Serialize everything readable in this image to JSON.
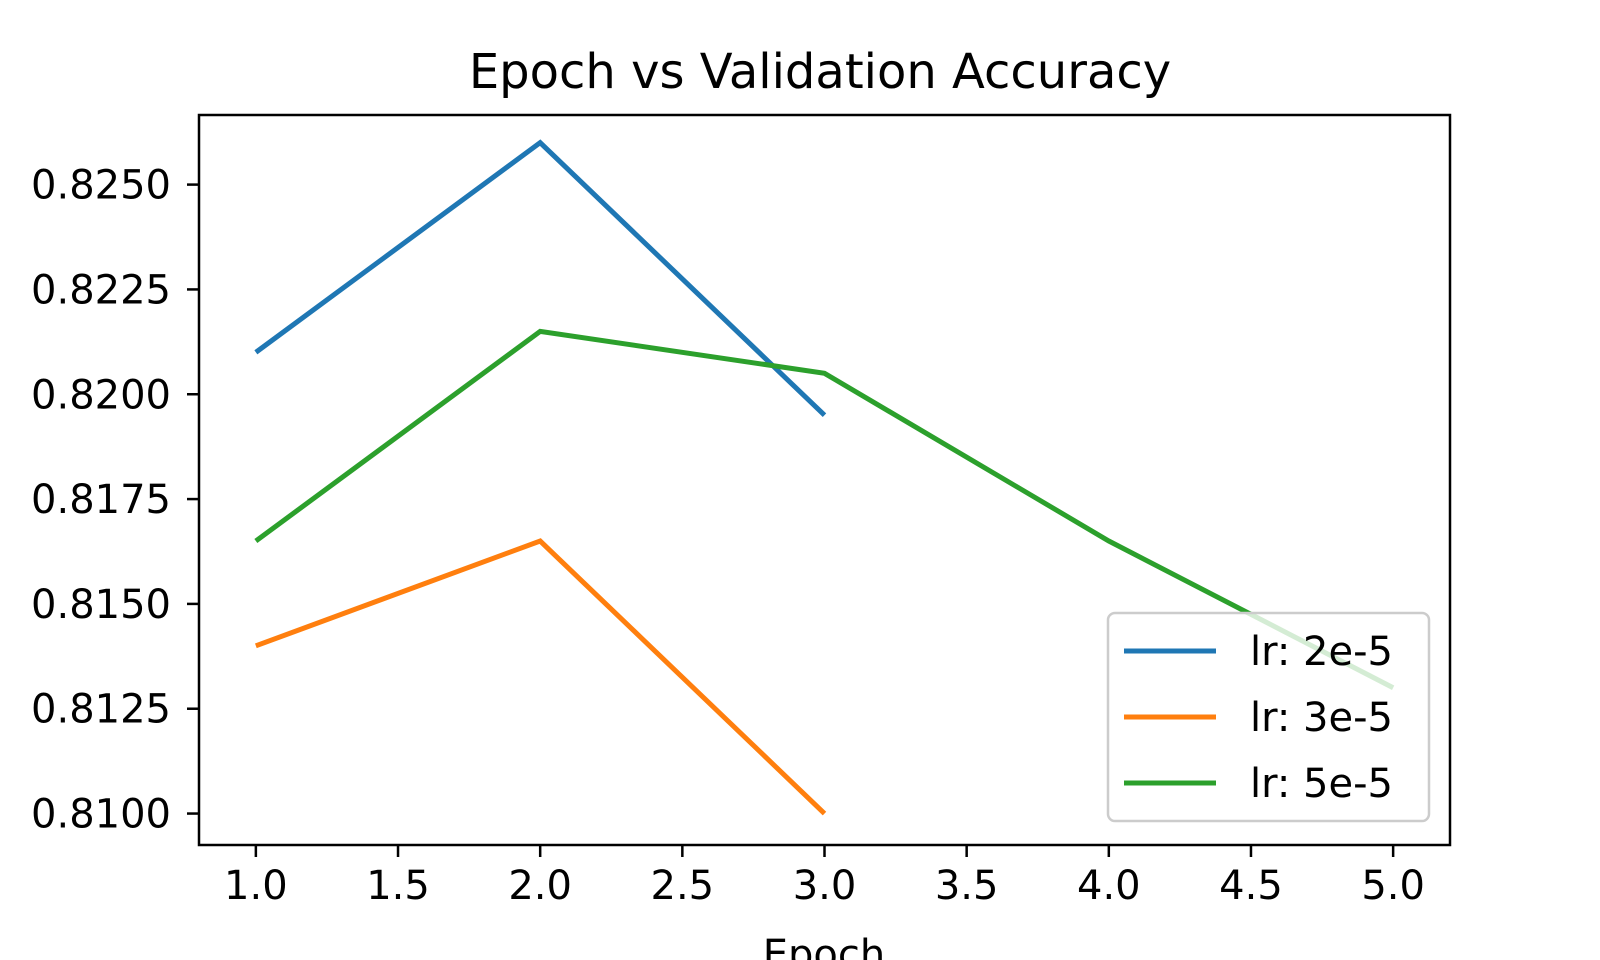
{
  "chart_data": {
    "type": "line",
    "title": "Epoch vs Validation Accuracy",
    "xlabel": "Epoch",
    "ylabel": "",
    "xlim": [
      0.8,
      5.2
    ],
    "ylim": [
      0.80925,
      0.82666
    ],
    "xticks": [
      1.0,
      1.5,
      2.0,
      2.5,
      3.0,
      3.5,
      4.0,
      4.5,
      5.0
    ],
    "xtick_labels": [
      "1.0",
      "1.5",
      "2.0",
      "2.5",
      "3.0",
      "3.5",
      "4.0",
      "4.5",
      "5.0"
    ],
    "yticks": [
      0.81,
      0.8125,
      0.815,
      0.8175,
      0.82,
      0.8225,
      0.825
    ],
    "ytick_labels": [
      "0.8100",
      "0.8125",
      "0.8150",
      "0.8175",
      "0.8200",
      "0.8225",
      "0.8250"
    ],
    "grid": false,
    "legend_position": "lower-right",
    "series": [
      {
        "name": "lr: 2e-5",
        "color": "#1f77b4",
        "x": [
          1,
          2,
          3
        ],
        "y": [
          0.821,
          0.826,
          0.8195
        ]
      },
      {
        "name": "lr: 3e-5",
        "color": "#ff7f0e",
        "x": [
          1,
          2,
          3
        ],
        "y": [
          0.814,
          0.8165,
          0.81
        ]
      },
      {
        "name": "lr: 5e-5",
        "color": "#2ca02c",
        "x": [
          1,
          2,
          3,
          4,
          5
        ],
        "y": [
          0.8165,
          0.8215,
          0.8205,
          0.8165,
          0.813
        ]
      }
    ]
  }
}
